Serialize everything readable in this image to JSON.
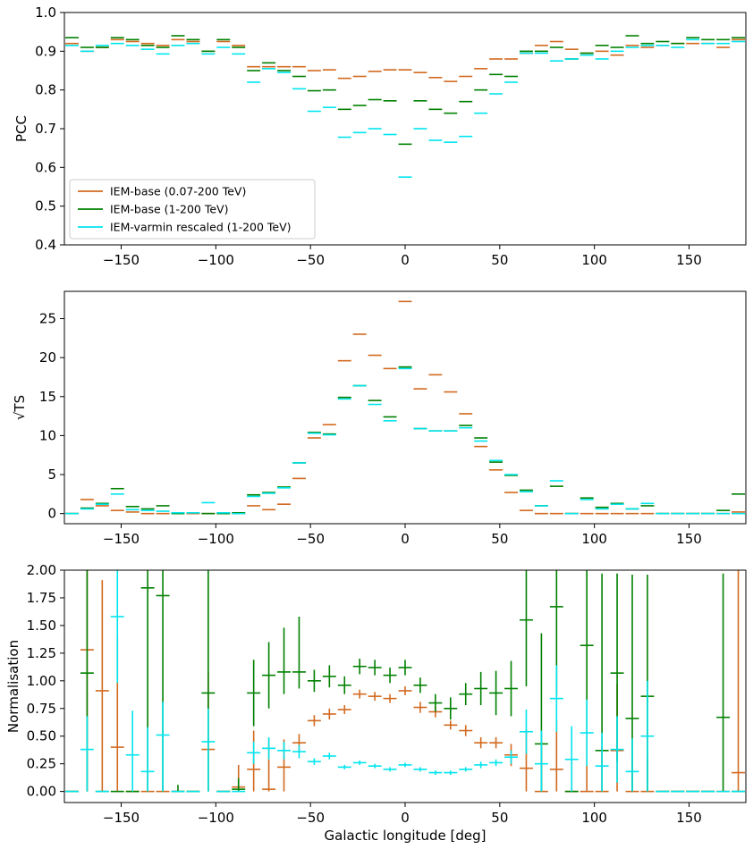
{
  "colors": {
    "base_wide": "#d2691e",
    "base_high": "#008000",
    "varmin": "#00e5ee"
  },
  "chart_data": [
    {
      "type": "errorbar-step",
      "panel": "pcc",
      "ylabel": "PCC",
      "xlabel": "",
      "xlim": [
        -180,
        180
      ],
      "ylim": [
        0.4,
        1.0
      ],
      "xticks": [
        -150,
        -100,
        -50,
        0,
        50,
        100,
        150
      ],
      "yticks": [
        0.4,
        0.5,
        0.6,
        0.7,
        0.8,
        0.9,
        1.0
      ],
      "ytick_labels": [
        "0.4",
        "0.5",
        "0.6",
        "0.7",
        "0.8",
        "0.9",
        "1.0"
      ],
      "x": [
        -176,
        -168,
        -160,
        -152,
        -144,
        -136,
        -128,
        -120,
        -112,
        -104,
        -96,
        -88,
        -80,
        -72,
        -64,
        -56,
        -48,
        -40,
        -32,
        -24,
        -16,
        -8,
        0,
        8,
        16,
        24,
        32,
        40,
        48,
        56,
        64,
        72,
        80,
        88,
        96,
        104,
        112,
        120,
        128,
        136,
        144,
        152,
        160,
        168,
        176
      ],
      "legend": [
        "IEM-base (0.07-200 TeV)",
        "IEM-base (1-200 TeV)",
        "IEM-varmin rescaled (1-200 TeV)"
      ],
      "series": [
        {
          "name": "IEM-base (0.07-200 TeV)",
          "color_key": "base_wide",
          "values": [
            0.92,
            0.9,
            0.91,
            0.93,
            0.925,
            0.92,
            0.915,
            0.93,
            0.925,
            0.9,
            0.925,
            0.915,
            0.86,
            0.86,
            0.86,
            0.86,
            0.85,
            0.852,
            0.83,
            0.835,
            0.848,
            0.852,
            0.852,
            0.845,
            0.832,
            0.822,
            0.835,
            0.855,
            0.88,
            0.88,
            0.895,
            0.915,
            0.925,
            0.905,
            0.895,
            0.9,
            0.89,
            0.915,
            0.91,
            0.915,
            0.92,
            0.92,
            0.92,
            0.91,
            0.93
          ]
        },
        {
          "name": "IEM-base (1-200 TeV)",
          "color_key": "base_high",
          "values": [
            0.935,
            0.91,
            0.91,
            0.935,
            0.93,
            0.915,
            0.91,
            0.94,
            0.93,
            0.9,
            0.93,
            0.91,
            0.85,
            0.87,
            0.85,
            0.835,
            0.798,
            0.8,
            0.75,
            0.76,
            0.775,
            0.772,
            0.66,
            0.772,
            0.75,
            0.74,
            0.77,
            0.8,
            0.84,
            0.835,
            0.9,
            0.9,
            0.91,
            0.88,
            0.895,
            0.915,
            0.91,
            0.94,
            0.92,
            0.925,
            0.92,
            0.935,
            0.93,
            0.93,
            0.935
          ]
        },
        {
          "name": "IEM-varmin rescaled (1-200 TeV)",
          "color_key": "varmin",
          "values": [
            0.915,
            0.9,
            0.915,
            0.92,
            0.915,
            0.905,
            0.893,
            0.915,
            0.92,
            0.893,
            0.91,
            0.893,
            0.82,
            0.855,
            0.845,
            0.803,
            0.745,
            0.755,
            0.678,
            0.69,
            0.7,
            0.685,
            0.575,
            0.7,
            0.67,
            0.665,
            0.68,
            0.74,
            0.79,
            0.82,
            0.895,
            0.895,
            0.875,
            0.88,
            0.89,
            0.88,
            0.9,
            0.91,
            0.915,
            0.915,
            0.91,
            0.93,
            0.92,
            0.92,
            0.925
          ]
        }
      ]
    },
    {
      "type": "errorbar-step",
      "panel": "sqrt_ts",
      "ylabel": "√TS",
      "xlabel": "",
      "xlim": [
        -180,
        180
      ],
      "ylim": [
        -1.3,
        28.5
      ],
      "xticks": [
        -150,
        -100,
        -50,
        0,
        50,
        100,
        150
      ],
      "yticks": [
        0,
        5,
        10,
        15,
        20,
        25
      ],
      "ytick_labels": [
        "0",
        "5",
        "10",
        "15",
        "20",
        "25"
      ],
      "x": [
        -176,
        -168,
        -160,
        -152,
        -144,
        -136,
        -128,
        -120,
        -112,
        -104,
        -96,
        -88,
        -80,
        -72,
        -64,
        -56,
        -48,
        -40,
        -32,
        -24,
        -16,
        -8,
        0,
        8,
        16,
        24,
        32,
        40,
        48,
        56,
        64,
        72,
        80,
        88,
        96,
        104,
        112,
        120,
        128,
        136,
        144,
        152,
        160,
        168,
        176
      ],
      "series": [
        {
          "name": "IEM-base (0.07-200 TeV)",
          "color_key": "base_wide",
          "values": [
            0.0,
            1.8,
            1.0,
            0.4,
            0.2,
            0.0,
            0.0,
            0.1,
            0.0,
            0.0,
            0.1,
            0.0,
            1.0,
            0.5,
            1.2,
            4.5,
            9.7,
            11.4,
            19.6,
            23.0,
            20.3,
            18.6,
            27.2,
            16.0,
            17.8,
            15.6,
            12.8,
            8.6,
            5.6,
            2.7,
            0.4,
            0.0,
            0.0,
            0.0,
            0.0,
            0.0,
            0.0,
            0.0,
            0.0,
            0.0,
            0.0,
            0.0,
            0.0,
            0.0,
            0.2
          ]
        },
        {
          "name": "IEM-base (1-200 TeV)",
          "color_key": "base_high",
          "values": [
            0.0,
            0.7,
            1.3,
            3.2,
            0.9,
            0.6,
            1.0,
            0.0,
            0.1,
            0.0,
            0.0,
            0.1,
            2.4,
            2.7,
            3.4,
            6.5,
            10.4,
            10.2,
            14.9,
            16.4,
            14.5,
            12.4,
            18.8,
            10.9,
            10.6,
            10.6,
            11.3,
            9.7,
            6.6,
            4.9,
            3.0,
            1.0,
            3.5,
            0.0,
            2.0,
            0.8,
            1.3,
            0.6,
            1.0,
            0.0,
            0.0,
            0.0,
            0.0,
            0.4,
            2.5
          ]
        },
        {
          "name": "IEM-varmin rescaled (1-200 TeV)",
          "color_key": "varmin",
          "values": [
            0.0,
            0.6,
            1.2,
            2.5,
            0.5,
            0.4,
            0.3,
            0.1,
            0.1,
            1.4,
            0.1,
            0.0,
            2.2,
            2.6,
            3.3,
            6.5,
            10.3,
            10.1,
            14.7,
            16.4,
            14.0,
            11.9,
            18.6,
            10.9,
            10.6,
            10.6,
            11.0,
            9.3,
            6.8,
            5.0,
            2.8,
            1.0,
            4.2,
            0.0,
            1.8,
            0.6,
            1.2,
            0.6,
            1.3,
            0.0,
            0.0,
            0.0,
            0.0,
            0.0,
            0.0
          ]
        }
      ]
    },
    {
      "type": "errorbar",
      "panel": "normalisation",
      "ylabel": "Normalisation",
      "xlabel": "Galactic longitude [deg]",
      "xlim": [
        -180,
        180
      ],
      "ylim": [
        -0.1,
        2.0
      ],
      "xticks": [
        -150,
        -100,
        -50,
        0,
        50,
        100,
        150
      ],
      "yticks": [
        0.0,
        0.25,
        0.5,
        0.75,
        1.0,
        1.25,
        1.5,
        1.75,
        2.0
      ],
      "ytick_labels": [
        "0.00",
        "0.25",
        "0.50",
        "0.75",
        "1.00",
        "1.25",
        "1.50",
        "1.75",
        "2.00"
      ],
      "x": [
        -176,
        -168,
        -160,
        -152,
        -144,
        -136,
        -128,
        -120,
        -112,
        -104,
        -96,
        -88,
        -80,
        -72,
        -64,
        -56,
        -48,
        -40,
        -32,
        -24,
        -16,
        -8,
        0,
        8,
        16,
        24,
        32,
        40,
        48,
        56,
        64,
        72,
        80,
        88,
        96,
        104,
        112,
        120,
        128,
        136,
        144,
        152,
        160,
        168,
        176
      ],
      "series": [
        {
          "name": "IEM-base (0.07-200 TeV)",
          "color_key": "base_wide",
          "values": [
            0.0,
            1.28,
            0.91,
            0.4,
            0.0,
            0.0,
            0.0,
            0.0,
            0.0,
            0.38,
            0.0,
            0.04,
            0.2,
            0.02,
            0.22,
            0.44,
            0.64,
            0.7,
            0.74,
            0.88,
            0.86,
            0.84,
            0.91,
            0.76,
            0.72,
            0.6,
            0.55,
            0.44,
            0.44,
            0.33,
            0.21,
            0.0,
            0.2,
            0.0,
            0.0,
            0.0,
            0.37,
            0.0,
            0.0,
            0.0,
            0.0,
            0.0,
            0.0,
            0.0,
            0.17
          ],
          "err_lo": [
            0.0,
            1.28,
            0.91,
            0.4,
            0.0,
            0.0,
            0.0,
            0.0,
            0.0,
            0.38,
            0.0,
            0.04,
            0.2,
            0.02,
            0.22,
            0.08,
            0.05,
            0.05,
            0.04,
            0.04,
            0.04,
            0.04,
            0.04,
            0.05,
            0.05,
            0.04,
            0.05,
            0.05,
            0.05,
            0.1,
            0.21,
            0.0,
            0.2,
            0.0,
            0.0,
            0.0,
            0.37,
            0.0,
            0.0,
            0.0,
            0.0,
            0.0,
            0.0,
            0.0,
            0.17
          ],
          "err_hi": [
            0.0,
            1.0,
            1.0,
            1.0,
            0.0,
            0.0,
            0.0,
            0.0,
            0.0,
            0.7,
            0.0,
            0.2,
            0.35,
            0.45,
            0.25,
            0.08,
            0.05,
            0.05,
            0.04,
            0.04,
            0.04,
            0.04,
            0.04,
            0.05,
            0.05,
            0.04,
            0.05,
            0.05,
            0.05,
            0.1,
            0.35,
            0.4,
            0.45,
            0.3,
            0.5,
            0.4,
            0.6,
            0.3,
            0.3,
            0.0,
            0.0,
            0.0,
            0.0,
            0.0,
            2.0
          ]
        },
        {
          "name": "IEM-base (1-200 TeV)",
          "color_key": "base_high",
          "values": [
            0.0,
            1.07,
            0.0,
            0.0,
            0.0,
            1.84,
            1.77,
            0.0,
            0.0,
            0.89,
            0.0,
            0.02,
            0.89,
            1.05,
            1.08,
            1.08,
            1.0,
            1.04,
            0.96,
            1.13,
            1.12,
            1.05,
            1.12,
            0.96,
            0.8,
            0.75,
            0.88,
            0.93,
            0.89,
            0.93,
            1.55,
            0.43,
            1.67,
            0.0,
            1.32,
            0.37,
            1.07,
            0.66,
            0.86,
            0.0,
            0.0,
            0.0,
            0.0,
            0.67,
            0.0
          ],
          "err_lo": [
            0.0,
            1.07,
            0.0,
            0.0,
            0.0,
            1.84,
            1.77,
            0.0,
            0.0,
            0.89,
            0.0,
            0.02,
            0.3,
            0.3,
            0.2,
            0.15,
            0.1,
            0.1,
            0.08,
            0.07,
            0.07,
            0.07,
            0.07,
            0.07,
            0.08,
            0.1,
            0.1,
            0.15,
            0.2,
            0.25,
            0.6,
            0.43,
            0.8,
            0.0,
            0.8,
            0.37,
            0.8,
            0.66,
            0.86,
            0.0,
            0.0,
            0.0,
            0.0,
            0.67,
            0.0
          ],
          "err_hi": [
            0.0,
            1.0,
            0.0,
            0.0,
            0.0,
            0.3,
            0.3,
            0.06,
            0.0,
            1.2,
            0.0,
            0.1,
            0.3,
            0.3,
            0.4,
            0.5,
            0.1,
            0.1,
            0.08,
            0.07,
            0.07,
            0.07,
            0.07,
            0.07,
            0.08,
            0.1,
            0.1,
            0.15,
            0.2,
            0.25,
            0.5,
            1.0,
            0.4,
            0.0,
            0.7,
            1.6,
            0.9,
            1.3,
            1.1,
            0.0,
            0.0,
            0.0,
            0.0,
            1.3,
            0.0
          ]
        },
        {
          "name": "IEM-varmin rescaled (1-200 TeV)",
          "color_key": "varmin",
          "values": [
            0.0,
            0.38,
            0.0,
            1.58,
            0.33,
            0.18,
            0.51,
            0.0,
            0.0,
            0.45,
            0.0,
            0.0,
            0.35,
            0.39,
            0.37,
            0.36,
            0.27,
            0.32,
            0.22,
            0.26,
            0.23,
            0.2,
            0.24,
            0.2,
            0.17,
            0.17,
            0.2,
            0.24,
            0.26,
            0.31,
            0.54,
            0.25,
            0.84,
            0.29,
            0.53,
            0.23,
            0.38,
            0.18,
            0.5,
            0.0,
            0.0,
            0.0,
            0.0,
            0.0,
            0.0
          ],
          "err_lo": [
            0.0,
            0.38,
            0.0,
            0.6,
            0.33,
            0.18,
            0.51,
            0.0,
            0.0,
            0.45,
            0.0,
            0.0,
            0.1,
            0.1,
            0.08,
            0.06,
            0.03,
            0.03,
            0.02,
            0.02,
            0.02,
            0.02,
            0.02,
            0.02,
            0.02,
            0.02,
            0.02,
            0.03,
            0.03,
            0.06,
            0.2,
            0.25,
            0.3,
            0.29,
            0.3,
            0.23,
            0.3,
            0.18,
            0.5,
            0.0,
            0.0,
            0.0,
            0.0,
            0.0,
            0.0
          ],
          "err_hi": [
            0.0,
            0.3,
            0.0,
            0.5,
            0.4,
            0.4,
            0.3,
            0.0,
            0.0,
            0.3,
            0.0,
            0.0,
            0.1,
            0.1,
            0.08,
            0.06,
            0.03,
            0.03,
            0.02,
            0.02,
            0.02,
            0.02,
            0.02,
            0.02,
            0.02,
            0.02,
            0.02,
            0.03,
            0.03,
            0.06,
            0.2,
            0.3,
            0.3,
            0.3,
            0.3,
            0.3,
            0.3,
            0.3,
            0.5,
            0.0,
            0.0,
            0.0,
            0.0,
            0.0,
            0.0
          ]
        }
      ]
    }
  ]
}
